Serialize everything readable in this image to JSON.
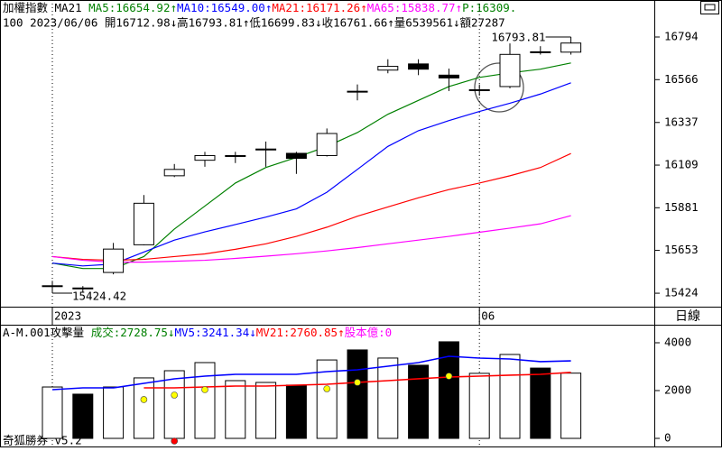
{
  "header": {
    "line1": [
      {
        "text": "加權指數 MA21 ",
        "color": "#000000"
      },
      {
        "text": "MA5:16654.92↑",
        "color": "#008000"
      },
      {
        "text": "MA10:16549.00↑",
        "color": "#0000ff"
      },
      {
        "text": "MA21:16171.26↑",
        "color": "#ff0000"
      },
      {
        "text": "MA65:15838.77↑",
        "color": "#ff00ff"
      },
      {
        "text": "P:16309.",
        "color": "#008000"
      }
    ],
    "line2": "100 2023/06/06 開16712.98↓高16793.81↑低16699.83↓收16761.66↑量6539561↓額27287",
    "volume_line": [
      {
        "text": "A-M.001攻擊量 ",
        "color": "#000000"
      },
      {
        "text": "成交:2728.75↓",
        "color": "#008000"
      },
      {
        "text": "MV5:3241.34↓",
        "color": "#0000ff"
      },
      {
        "text": "MV21:2760.85↑",
        "color": "#ff0000"
      },
      {
        "text": "股本億:0",
        "color": "#ff00ff"
      }
    ],
    "footer": "奇狐勝券 v5.2",
    "period": "日線"
  },
  "chart_data": [
    {
      "type": "candlestick",
      "categories": [
        "2023",
        null,
        null,
        null,
        null,
        null,
        null,
        null,
        null,
        null,
        null,
        null,
        null,
        null,
        "06",
        null,
        null,
        null
      ],
      "open": [
        15462,
        15452,
        15535,
        15683,
        16052,
        16135,
        16158,
        16190,
        16172,
        16160,
        16500,
        16617,
        16650,
        16590,
        16512,
        16529,
        16712,
        16712.98
      ],
      "high": [
        15490,
        15462,
        15693,
        15949,
        16115,
        16180,
        16180,
        16235,
        16180,
        16305,
        16540,
        16675,
        16675,
        16625,
        16540,
        16760,
        16745,
        16793.81
      ],
      "low": [
        15424.42,
        15430,
        15525,
        15680,
        16045,
        16100,
        16120,
        16100,
        16062,
        16155,
        16455,
        16600,
        16590,
        16505,
        16480,
        16520,
        16700,
        16699.83
      ],
      "close": [
        15464,
        15450,
        15660,
        15905,
        16086,
        16160,
        16160,
        16195,
        16145,
        16278,
        16504,
        16637,
        16622,
        16575,
        16510,
        16701,
        16715,
        16761.66
      ],
      "up_color": "#ffffff",
      "down_color": "#000000",
      "high_label": 16793.81,
      "low_label": 15424.42,
      "series": [
        {
          "color": "#008000",
          "values": [
            15585,
            15556,
            15556,
            15620,
            15767,
            15890,
            16013,
            16096,
            16150,
            16209,
            16283,
            16381,
            16455,
            16529,
            16578,
            16602,
            16622,
            16655
          ]
        },
        {
          "color": "#0000ff",
          "values": [
            15585,
            15570,
            15580,
            15644,
            15708,
            15752,
            15791,
            15831,
            15875,
            15964,
            16086,
            16209,
            16293,
            16347,
            16396,
            16440,
            16489,
            16549
          ]
        },
        {
          "color": "#ff0000",
          "values": [
            15620,
            15605,
            15600,
            15605,
            15620,
            15634,
            15659,
            15688,
            15728,
            15777,
            15836,
            15885,
            15934,
            15978,
            16013,
            16052,
            16096,
            16171
          ]
        },
        {
          "color": "#ff00ff",
          "values": [
            15620,
            15600,
            15590,
            15590,
            15595,
            15600,
            15610,
            15622,
            15635,
            15650,
            15668,
            15688,
            15708,
            15728,
            15750,
            15772,
            15795,
            15839
          ]
        }
      ],
      "ylim": [
        15352,
        16905
      ],
      "yticks": [
        15424,
        15653,
        15881,
        16109,
        16337,
        16566,
        16794
      ]
    },
    {
      "type": "bar",
      "values": [
        2150,
        1850,
        2150,
        2530,
        2830,
        3170,
        2415,
        2340,
        2230,
        3280,
        3700,
        3360,
        3060,
        4040,
        2720,
        3510,
        2940,
        2728.75
      ],
      "colors": [
        "#ffffff",
        "#000000",
        "#ffffff",
        "#ffffff",
        "#ffffff",
        "#ffffff",
        "#ffffff",
        "#ffffff",
        "#000000",
        "#ffffff",
        "#000000",
        "#ffffff",
        "#000000",
        "#000000",
        "#ffffff",
        "#ffffff",
        "#000000",
        "#ffffff"
      ],
      "series": [
        {
          "color": "#0000ff",
          "values": [
            2038,
            2113,
            2113,
            2302,
            2491,
            2604,
            2679,
            2679,
            2679,
            2792,
            2868,
            3019,
            3170,
            3434,
            3358,
            3321,
            3208,
            3241
          ]
        },
        {
          "color": "#ff0000",
          "values": [
            null,
            null,
            null,
            2113,
            2113,
            2151,
            2189,
            2189,
            2226,
            2264,
            2340,
            2415,
            2491,
            2566,
            2604,
            2642,
            2679,
            2761
          ]
        }
      ],
      "markers": [
        {
          "color": "#ffff00",
          "values": [
            null,
            null,
            null,
            1623,
            1811,
            2038,
            null,
            null,
            null,
            2075,
            2340,
            null,
            null,
            2604,
            null,
            null,
            null,
            null
          ]
        },
        {
          "color": "#ff0000",
          "values": [
            null,
            null,
            null,
            null,
            -113,
            null,
            null,
            null,
            null,
            null,
            null,
            null,
            null,
            null,
            null,
            null,
            null,
            null
          ]
        }
      ],
      "ylim": [
        -151,
        4679
      ],
      "yticks": [
        0,
        2000,
        4000
      ]
    }
  ]
}
